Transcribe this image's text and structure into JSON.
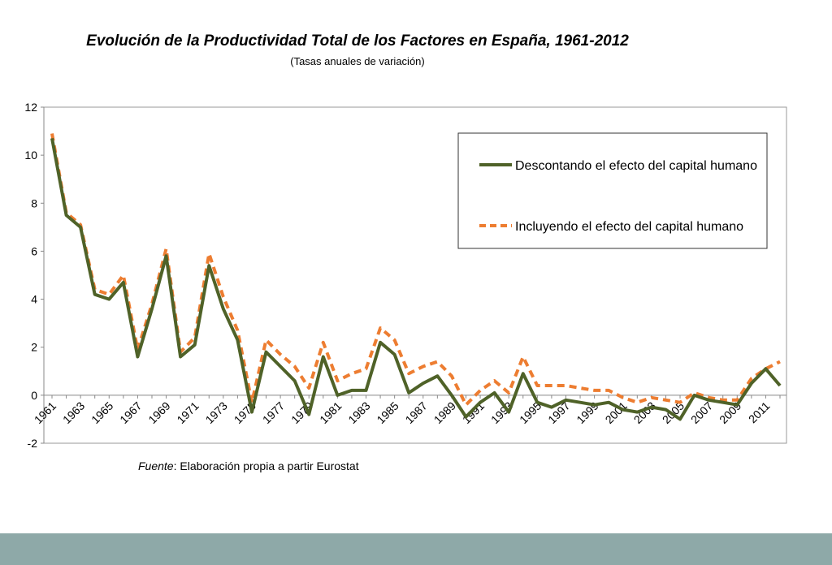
{
  "chart_data": {
    "type": "line",
    "title": "Evolución de la Productividad  Total de los Factores en España, 1961-2012",
    "subtitle": "(Tasas anuales de variación)",
    "xlabel": "",
    "ylabel": "",
    "ylim": [
      -2,
      12
    ],
    "yticks": [
      -2,
      0,
      2,
      4,
      6,
      8,
      10,
      12
    ],
    "xlim": [
      1961,
      2012
    ],
    "xticks": [
      1961,
      1963,
      1965,
      1967,
      1969,
      1971,
      1973,
      1975,
      1977,
      1979,
      1981,
      1983,
      1985,
      1987,
      1989,
      1991,
      1993,
      1995,
      1997,
      1999,
      2001,
      2003,
      2005,
      2007,
      2009,
      2011
    ],
    "x": [
      1961,
      1962,
      1963,
      1964,
      1965,
      1966,
      1967,
      1968,
      1969,
      1970,
      1971,
      1972,
      1973,
      1974,
      1975,
      1976,
      1977,
      1978,
      1979,
      1980,
      1981,
      1982,
      1983,
      1984,
      1985,
      1986,
      1987,
      1988,
      1989,
      1990,
      1991,
      1992,
      1993,
      1994,
      1995,
      1996,
      1997,
      1998,
      1999,
      2000,
      2001,
      2002,
      2003,
      2004,
      2005,
      2006,
      2007,
      2008,
      2009,
      2010,
      2011,
      2012
    ],
    "grid": false,
    "legend_position": "top-right",
    "series": [
      {
        "name": "Descontando el efecto del capital humano",
        "color": "#4f6228",
        "style": "solid",
        "values": [
          10.7,
          7.5,
          7.0,
          4.2,
          4.0,
          4.7,
          1.6,
          3.6,
          5.8,
          1.6,
          2.1,
          5.4,
          3.6,
          2.3,
          -0.7,
          1.8,
          1.2,
          0.6,
          -0.8,
          1.6,
          0.0,
          0.2,
          0.2,
          2.2,
          1.7,
          0.1,
          0.5,
          0.8,
          0.0,
          -0.9,
          -0.3,
          0.1,
          -0.7,
          0.9,
          -0.3,
          -0.5,
          -0.2,
          -0.3,
          -0.4,
          -0.3,
          -0.6,
          -0.7,
          -0.5,
          -0.6,
          -1.0,
          0.0,
          -0.2,
          -0.3,
          -0.4,
          0.5,
          1.1,
          0.4
        ]
      },
      {
        "name": "Incluyendo el efecto del capital humano",
        "color": "#ed7d31",
        "style": "dashed",
        "values": [
          10.9,
          7.6,
          7.1,
          4.4,
          4.2,
          5.0,
          1.9,
          3.8,
          6.1,
          1.8,
          2.4,
          5.9,
          4.1,
          2.7,
          -0.3,
          2.3,
          1.7,
          1.2,
          0.3,
          2.2,
          0.6,
          0.9,
          1.1,
          2.8,
          2.3,
          0.9,
          1.2,
          1.4,
          0.8,
          -0.4,
          0.2,
          0.6,
          0.1,
          1.6,
          0.4,
          0.4,
          0.4,
          0.3,
          0.2,
          0.2,
          -0.1,
          -0.3,
          -0.1,
          -0.2,
          -0.3,
          0.1,
          -0.1,
          -0.2,
          -0.2,
          0.7,
          1.1,
          1.4
        ]
      }
    ]
  },
  "source": {
    "label": "Fuente",
    "text": ": Elaboración propia a partir Eurostat"
  }
}
